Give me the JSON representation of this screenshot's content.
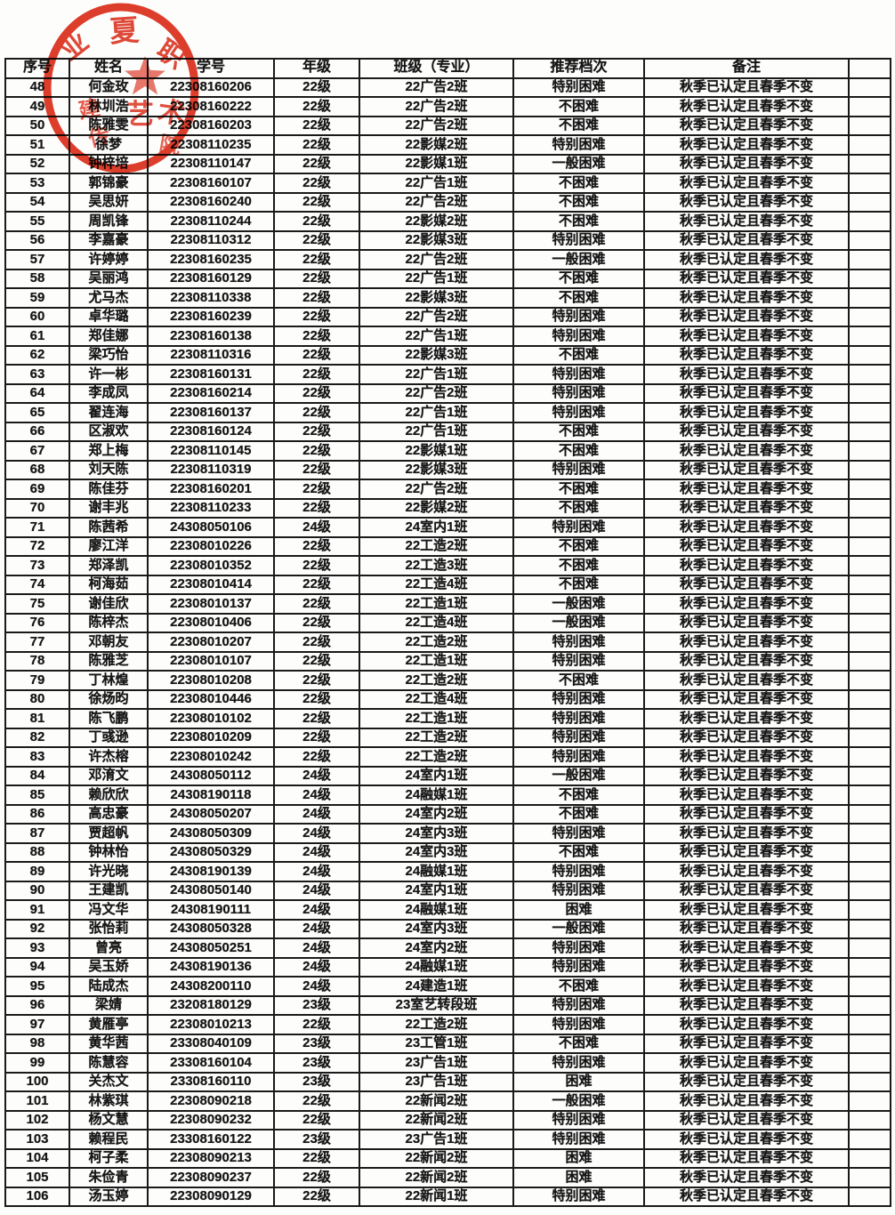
{
  "stamp": {
    "color": "#dc2f1b",
    "arc_chars": [
      "业",
      "夏",
      "职"
    ],
    "inner_chars": [
      "建",
      "艺",
      "术",
      "传",
      "院"
    ]
  },
  "table": {
    "headers": [
      "序号",
      "姓名",
      "学号",
      "年级",
      "班级（专业）",
      "推荐档次",
      "备注",
      ""
    ],
    "rows": [
      [
        "48",
        "何金玫",
        "22308160206",
        "22级",
        "22广告2班",
        "特别困难",
        "秋季已认定且春季不变",
        ""
      ],
      [
        "49",
        "林圳浩",
        "22308160222",
        "22级",
        "22广告2班",
        "不困难",
        "秋季已认定且春季不变",
        ""
      ],
      [
        "50",
        "陈雅雯",
        "22308160203",
        "22级",
        "22广告2班",
        "不困难",
        "秋季已认定且春季不变",
        ""
      ],
      [
        "51",
        "徐梦",
        "22308110235",
        "22级",
        "22影媒2班",
        "特别困难",
        "秋季已认定且春季不变",
        ""
      ],
      [
        "52",
        "钟梓培",
        "22308110147",
        "22级",
        "22影媒1班",
        "一般困难",
        "秋季已认定且春季不变",
        ""
      ],
      [
        "53",
        "郭锦豪",
        "22308160107",
        "22级",
        "22广告1班",
        "不困难",
        "秋季已认定且春季不变",
        ""
      ],
      [
        "54",
        "吴思妍",
        "22308160240",
        "22级",
        "22广告2班",
        "不困难",
        "秋季已认定且春季不变",
        ""
      ],
      [
        "55",
        "周凯锋",
        "22308110244",
        "22级",
        "22影媒2班",
        "不困难",
        "秋季已认定且春季不变",
        ""
      ],
      [
        "56",
        "李嘉豪",
        "22308110312",
        "22级",
        "22影媒3班",
        "特别困难",
        "秋季已认定且春季不变",
        ""
      ],
      [
        "57",
        "许婷婷",
        "22308160235",
        "22级",
        "22广告2班",
        "一般困难",
        "秋季已认定且春季不变",
        ""
      ],
      [
        "58",
        "吴丽鸿",
        "22308160129",
        "22级",
        "22广告1班",
        "不困难",
        "秋季已认定且春季不变",
        ""
      ],
      [
        "59",
        "尤马杰",
        "22308110338",
        "22级",
        "22影媒3班",
        "不困难",
        "秋季已认定且春季不变",
        ""
      ],
      [
        "60",
        "卓华璐",
        "22308160239",
        "22级",
        "22广告2班",
        "特别困难",
        "秋季已认定且春季不变",
        ""
      ],
      [
        "61",
        "郑佳娜",
        "22308160138",
        "22级",
        "22广告1班",
        "特别困难",
        "秋季已认定且春季不变",
        ""
      ],
      [
        "62",
        "梁巧怡",
        "22308110316",
        "22级",
        "22影媒3班",
        "不困难",
        "秋季已认定且春季不变",
        ""
      ],
      [
        "63",
        "许一彬",
        "22308160131",
        "22级",
        "22广告1班",
        "特别困难",
        "秋季已认定且春季不变",
        ""
      ],
      [
        "64",
        "李成凤",
        "22308160214",
        "22级",
        "22广告2班",
        "特别困难",
        "秋季已认定且春季不变",
        ""
      ],
      [
        "65",
        "翟连海",
        "22308160137",
        "22级",
        "22广告1班",
        "特别困难",
        "秋季已认定且春季不变",
        ""
      ],
      [
        "66",
        "区淑欢",
        "22308160124",
        "22级",
        "22广告1班",
        "不困难",
        "秋季已认定且春季不变",
        ""
      ],
      [
        "67",
        "郑上梅",
        "22308110145",
        "22级",
        "22影媒1班",
        "不困难",
        "秋季已认定且春季不变",
        ""
      ],
      [
        "68",
        "刘天陈",
        "22308110319",
        "22级",
        "22影媒3班",
        "特别困难",
        "秋季已认定且春季不变",
        ""
      ],
      [
        "69",
        "陈佳芬",
        "22308160201",
        "22级",
        "22广告2班",
        "不困难",
        "秋季已认定且春季不变",
        ""
      ],
      [
        "70",
        "谢丰兆",
        "22308110233",
        "22级",
        "22影媒2班",
        "不困难",
        "秋季已认定且春季不变",
        ""
      ],
      [
        "71",
        "陈茜希",
        "24308050106",
        "24级",
        "24室内1班",
        "特别困难",
        "秋季已认定且春季不变",
        ""
      ],
      [
        "72",
        "廖江洋",
        "22308010226",
        "22级",
        "22工造2班",
        "不困难",
        "秋季已认定且春季不变",
        ""
      ],
      [
        "73",
        "郑泽凯",
        "22308010352",
        "22级",
        "22工造3班",
        "不困难",
        "秋季已认定且春季不变",
        ""
      ],
      [
        "74",
        "柯海茹",
        "22308010414",
        "22级",
        "22工造4班",
        "不困难",
        "秋季已认定且春季不变",
        ""
      ],
      [
        "75",
        "谢佳欣",
        "22308010137",
        "22级",
        "22工造1班",
        "一般困难",
        "秋季已认定且春季不变",
        ""
      ],
      [
        "76",
        "陈梓杰",
        "22308010406",
        "22级",
        "22工造4班",
        "一般困难",
        "秋季已认定且春季不变",
        ""
      ],
      [
        "77",
        "邓朝友",
        "22308010207",
        "22级",
        "22工造2班",
        "特别困难",
        "秋季已认定且春季不变",
        ""
      ],
      [
        "78",
        "陈雅芝",
        "22308010107",
        "22级",
        "22工造1班",
        "特别困难",
        "秋季已认定且春季不变",
        ""
      ],
      [
        "79",
        "丁林煌",
        "22308010208",
        "22级",
        "22工造2班",
        "不困难",
        "秋季已认定且春季不变",
        ""
      ],
      [
        "80",
        "徐炀昀",
        "22308010446",
        "22级",
        "22工造4班",
        "特别困难",
        "秋季已认定且春季不变",
        ""
      ],
      [
        "81",
        "陈飞鹏",
        "22308010102",
        "22级",
        "22工造1班",
        "特别困难",
        "秋季已认定且春季不变",
        ""
      ],
      [
        "82",
        "丁彧逊",
        "22308010209",
        "22级",
        "22工造2班",
        "特别困难",
        "秋季已认定且春季不变",
        ""
      ],
      [
        "83",
        "许杰榕",
        "22308010242",
        "22级",
        "22工造2班",
        "特别困难",
        "秋季已认定且春季不变",
        ""
      ],
      [
        "84",
        "邓淯文",
        "24308050112",
        "24级",
        "24室内1班",
        "一般困难",
        "秋季已认定且春季不变",
        ""
      ],
      [
        "85",
        "赖欣欣",
        "24308190118",
        "24级",
        "24融媒1班",
        "不困难",
        "秋季已认定且春季不变",
        ""
      ],
      [
        "86",
        "高忠豪",
        "24308050207",
        "24级",
        "24室内2班",
        "不困难",
        "秋季已认定且春季不变",
        ""
      ],
      [
        "87",
        "贾超帆",
        "24308050309",
        "24级",
        "24室内3班",
        "特别困难",
        "秋季已认定且春季不变",
        ""
      ],
      [
        "88",
        "钟林怡",
        "24308050329",
        "24级",
        "24室内3班",
        "不困难",
        "秋季已认定且春季不变",
        ""
      ],
      [
        "89",
        "许光晓",
        "24308190139",
        "24级",
        "24融媒1班",
        "特别困难",
        "秋季已认定且春季不变",
        ""
      ],
      [
        "90",
        "王建凯",
        "24308050140",
        "24级",
        "24室内1班",
        "特别困难",
        "秋季已认定且春季不变",
        ""
      ],
      [
        "91",
        "冯文华",
        "24308190111",
        "24级",
        "24融媒1班",
        "困难",
        "秋季已认定且春季不变",
        ""
      ],
      [
        "92",
        "张怡莉",
        "24308050328",
        "24级",
        "24室内3班",
        "一般困难",
        "秋季已认定且春季不变",
        ""
      ],
      [
        "93",
        "曾亮",
        "24308050251",
        "24级",
        "24室内2班",
        "特别困难",
        "秋季已认定且春季不变",
        ""
      ],
      [
        "94",
        "吴玉娇",
        "24308190136",
        "24级",
        "24融媒1班",
        "特别困难",
        "秋季已认定且春季不变",
        ""
      ],
      [
        "95",
        "陆成杰",
        "24308200110",
        "24级",
        "24建造1班",
        "不困难",
        "秋季已认定且春季不变",
        ""
      ],
      [
        "96",
        "梁婧",
        "23208180129",
        "23级",
        "23室艺转段班",
        "特别困难",
        "秋季已认定且春季不变",
        ""
      ],
      [
        "97",
        "黄雁亭",
        "22308010213",
        "22级",
        "22工造2班",
        "特别困难",
        "秋季已认定且春季不变",
        ""
      ],
      [
        "98",
        "黄华茜",
        "23308040109",
        "23级",
        "23工管1班",
        "不困难",
        "秋季已认定且春季不变",
        ""
      ],
      [
        "99",
        "陈慧容",
        "23308160104",
        "23级",
        "23广告1班",
        "特别困难",
        "秋季已认定且春季不变",
        ""
      ],
      [
        "100",
        "关杰文",
        "23308160110",
        "23级",
        "23广告1班",
        "困难",
        "秋季已认定且春季不变",
        ""
      ],
      [
        "101",
        "林紫琪",
        "22308090218",
        "22级",
        "22新闻2班",
        "一般困难",
        "秋季已认定且春季不变",
        ""
      ],
      [
        "102",
        "杨文慧",
        "22308090232",
        "22级",
        "22新闻2班",
        "特别困难",
        "秋季已认定且春季不变",
        ""
      ],
      [
        "103",
        "赖程民",
        "23308160122",
        "23级",
        "23广告1班",
        "特别困难",
        "秋季已认定且春季不变",
        ""
      ],
      [
        "104",
        "柯子柔",
        "22308090213",
        "22级",
        "22新闻2班",
        "困难",
        "秋季已认定且春季不变",
        ""
      ],
      [
        "105",
        "朱俭青",
        "22308090237",
        "22级",
        "22新闻2班",
        "困难",
        "秋季已认定且春季不变",
        ""
      ],
      [
        "106",
        "汤玉婷",
        "22308090129",
        "22级",
        "22新闻1班",
        "特别困难",
        "秋季已认定且春季不变",
        ""
      ]
    ]
  }
}
